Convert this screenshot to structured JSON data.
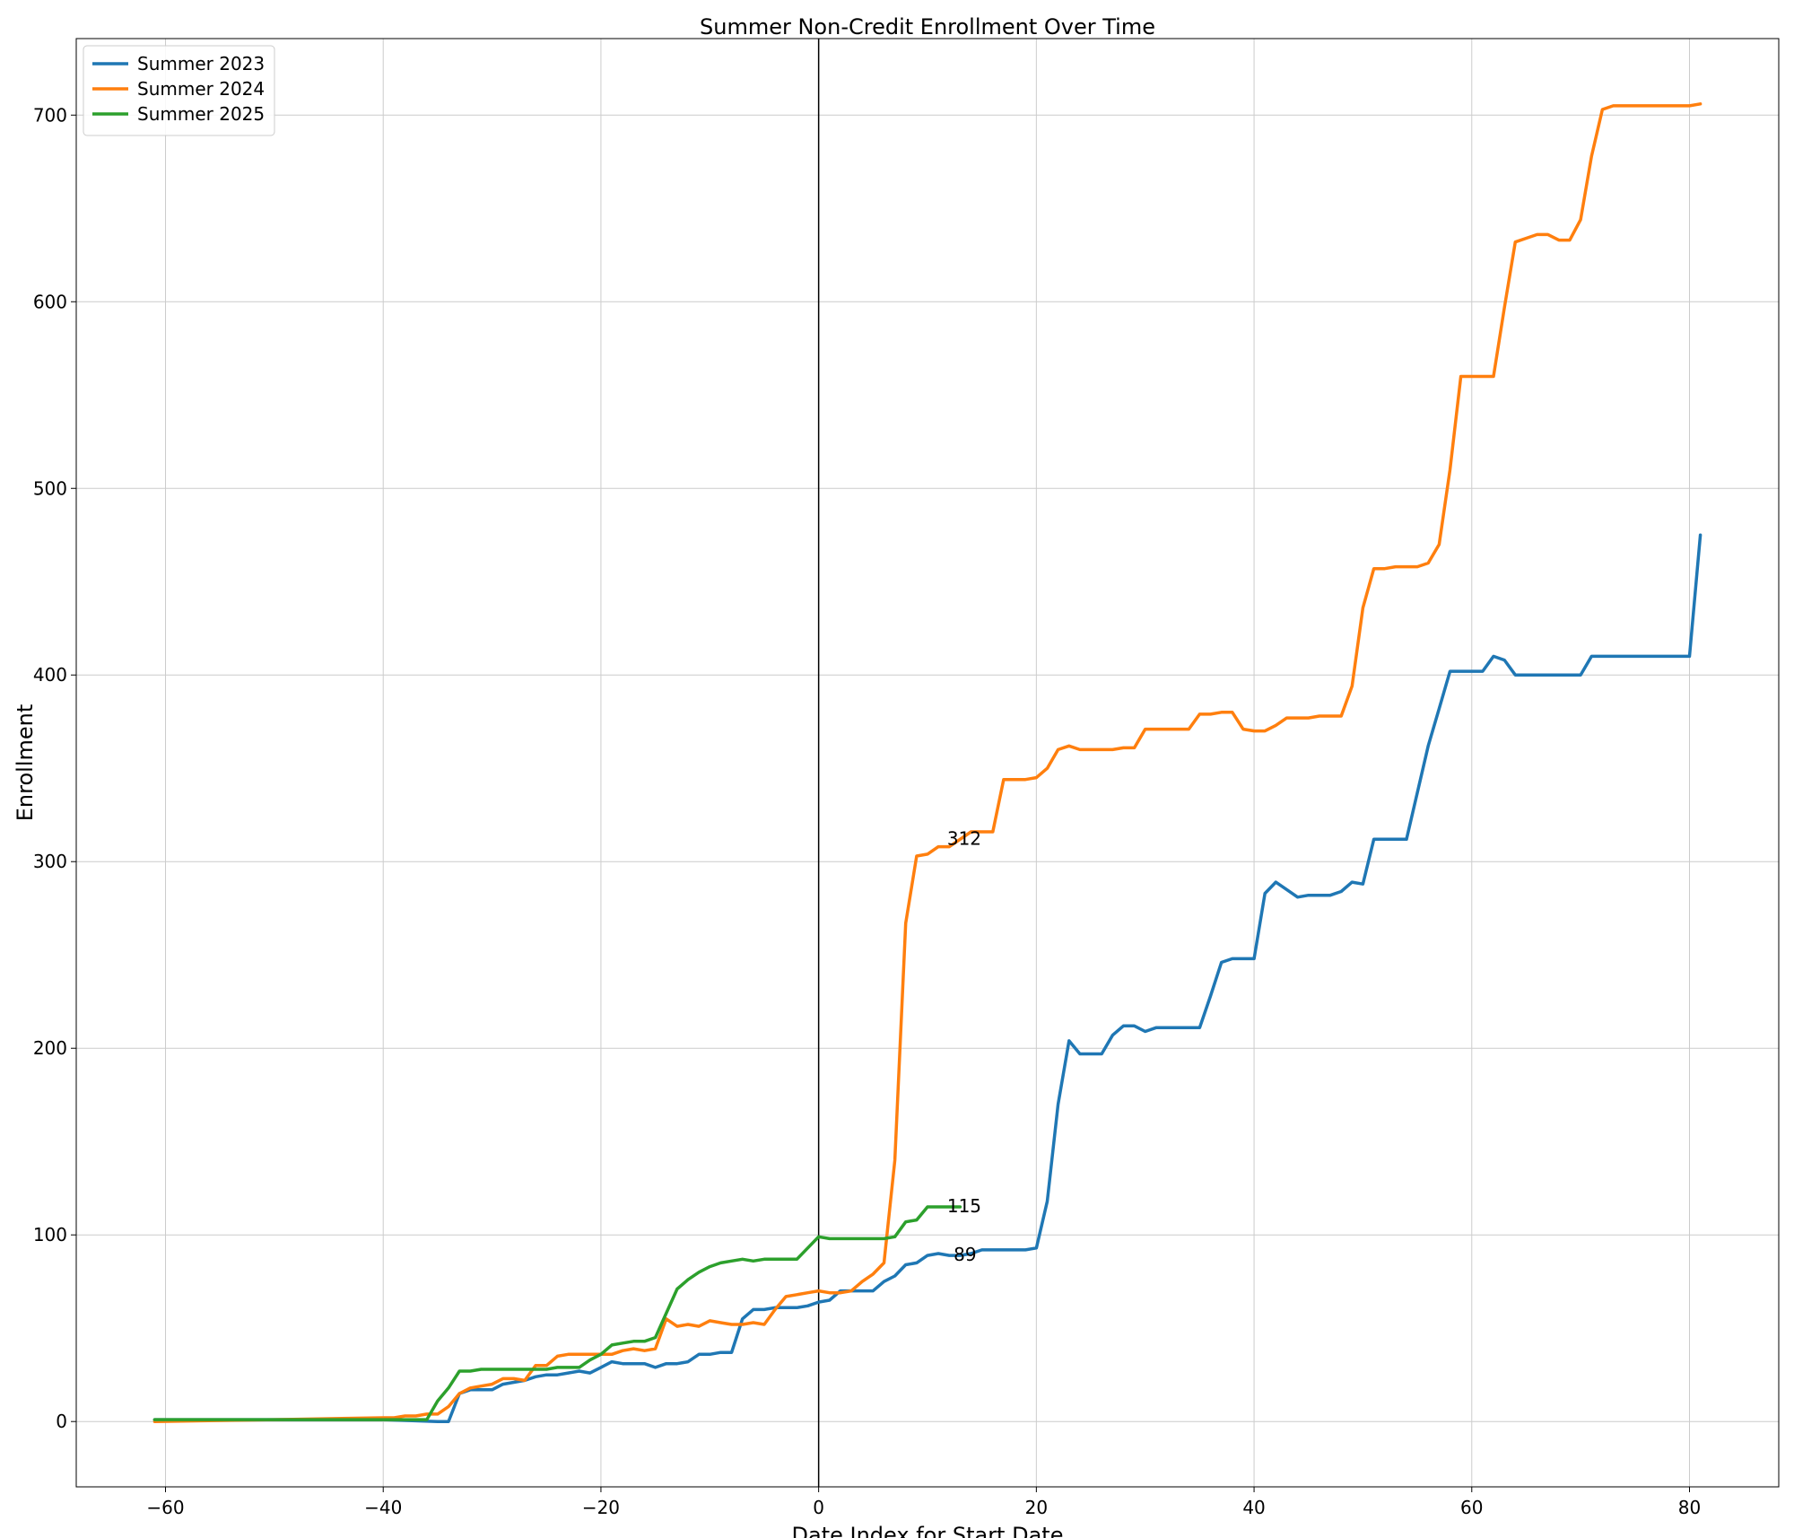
{
  "chart_data": {
    "type": "line",
    "title": "Summer Non-Credit Enrollment Over Time",
    "xlabel": "Date Index for Start Date",
    "ylabel": "Enrollment",
    "xlim": [
      -68.2,
      88.2
    ],
    "ylim": [
      -35,
      741
    ],
    "xticks": [
      -60,
      -40,
      -20,
      0,
      20,
      40,
      60,
      80
    ],
    "xtick_labels": [
      "−60",
      "−40",
      "−20",
      "0",
      "20",
      "40",
      "60",
      "80"
    ],
    "yticks": [
      0,
      100,
      200,
      300,
      400,
      500,
      600,
      700
    ],
    "ytick_labels": [
      "0",
      "100",
      "200",
      "300",
      "400",
      "500",
      "600",
      "700"
    ],
    "grid": true,
    "legend_position": "top-left",
    "vertical_line_x": 0,
    "series": [
      {
        "name": "Summer 2023",
        "color": "#1f77b4",
        "points": [
          [
            -61,
            1
          ],
          [
            -50,
            1
          ],
          [
            -40,
            1
          ],
          [
            -35,
            0
          ],
          [
            -34,
            0
          ],
          [
            -33,
            15
          ],
          [
            -32,
            17
          ],
          [
            -31,
            17
          ],
          [
            -30,
            17
          ],
          [
            -29,
            20
          ],
          [
            -28,
            21
          ],
          [
            -27,
            22
          ],
          [
            -26,
            24
          ],
          [
            -25,
            25
          ],
          [
            -24,
            25
          ],
          [
            -23,
            26
          ],
          [
            -22,
            27
          ],
          [
            -21,
            26
          ],
          [
            -20,
            29
          ],
          [
            -19,
            32
          ],
          [
            -18,
            31
          ],
          [
            -17,
            31
          ],
          [
            -16,
            31
          ],
          [
            -15,
            29
          ],
          [
            -14,
            31
          ],
          [
            -13,
            31
          ],
          [
            -12,
            32
          ],
          [
            -11,
            36
          ],
          [
            -10,
            36
          ],
          [
            -9,
            37
          ],
          [
            -8,
            37
          ],
          [
            -7,
            55
          ],
          [
            -6,
            60
          ],
          [
            -5,
            60
          ],
          [
            -4,
            61
          ],
          [
            -3,
            61
          ],
          [
            -2,
            61
          ],
          [
            -1,
            62
          ],
          [
            0,
            64
          ],
          [
            1,
            65
          ],
          [
            2,
            70
          ],
          [
            3,
            70
          ],
          [
            4,
            70
          ],
          [
            5,
            70
          ],
          [
            6,
            75
          ],
          [
            7,
            78
          ],
          [
            8,
            84
          ],
          [
            9,
            85
          ],
          [
            10,
            89
          ],
          [
            11,
            90
          ],
          [
            12,
            89
          ],
          [
            13,
            89
          ],
          [
            14,
            90
          ],
          [
            15,
            92
          ],
          [
            16,
            92
          ],
          [
            17,
            92
          ],
          [
            18,
            92
          ],
          [
            19,
            92
          ],
          [
            20,
            93
          ],
          [
            21,
            118
          ],
          [
            22,
            170
          ],
          [
            23,
            204
          ],
          [
            24,
            197
          ],
          [
            25,
            197
          ],
          [
            26,
            197
          ],
          [
            27,
            207
          ],
          [
            28,
            212
          ],
          [
            29,
            212
          ],
          [
            30,
            209
          ],
          [
            31,
            211
          ],
          [
            32,
            211
          ],
          [
            33,
            211
          ],
          [
            34,
            211
          ],
          [
            35,
            211
          ],
          [
            36,
            228
          ],
          [
            37,
            246
          ],
          [
            38,
            248
          ],
          [
            39,
            248
          ],
          [
            40,
            248
          ],
          [
            41,
            283
          ],
          [
            42,
            289
          ],
          [
            43,
            285
          ],
          [
            44,
            281
          ],
          [
            45,
            282
          ],
          [
            46,
            282
          ],
          [
            47,
            282
          ],
          [
            48,
            284
          ],
          [
            49,
            289
          ],
          [
            50,
            288
          ],
          [
            51,
            312
          ],
          [
            52,
            312
          ],
          [
            53,
            312
          ],
          [
            54,
            312
          ],
          [
            55,
            337
          ],
          [
            56,
            362
          ],
          [
            57,
            382
          ],
          [
            58,
            402
          ],
          [
            59,
            402
          ],
          [
            60,
            402
          ],
          [
            61,
            402
          ],
          [
            62,
            410
          ],
          [
            63,
            408
          ],
          [
            64,
            400
          ],
          [
            65,
            400
          ],
          [
            66,
            400
          ],
          [
            67,
            400
          ],
          [
            68,
            400
          ],
          [
            69,
            400
          ],
          [
            70,
            400
          ],
          [
            71,
            410
          ],
          [
            72,
            410
          ],
          [
            80,
            410
          ],
          [
            81,
            475
          ]
        ]
      },
      {
        "name": "Summer 2024",
        "color": "#ff7f0e",
        "points": [
          [
            -61,
            0
          ],
          [
            -50,
            1
          ],
          [
            -40,
            2
          ],
          [
            -39,
            2
          ],
          [
            -38,
            3
          ],
          [
            -37,
            3
          ],
          [
            -36,
            4
          ],
          [
            -35,
            4
          ],
          [
            -34,
            8
          ],
          [
            -33,
            15
          ],
          [
            -32,
            18
          ],
          [
            -31,
            19
          ],
          [
            -30,
            20
          ],
          [
            -29,
            23
          ],
          [
            -28,
            23
          ],
          [
            -27,
            22
          ],
          [
            -26,
            30
          ],
          [
            -25,
            30
          ],
          [
            -24,
            35
          ],
          [
            -23,
            36
          ],
          [
            -22,
            36
          ],
          [
            -21,
            36
          ],
          [
            -20,
            36
          ],
          [
            -19,
            36
          ],
          [
            -18,
            38
          ],
          [
            -17,
            39
          ],
          [
            -16,
            38
          ],
          [
            -15,
            39
          ],
          [
            -14,
            55
          ],
          [
            -13,
            51
          ],
          [
            -12,
            52
          ],
          [
            -11,
            51
          ],
          [
            -10,
            54
          ],
          [
            -9,
            53
          ],
          [
            -8,
            52
          ],
          [
            -7,
            52
          ],
          [
            -6,
            53
          ],
          [
            -5,
            52
          ],
          [
            -4,
            60
          ],
          [
            -3,
            67
          ],
          [
            -2,
            68
          ],
          [
            -1,
            69
          ],
          [
            0,
            70
          ],
          [
            1,
            69
          ],
          [
            2,
            69
          ],
          [
            3,
            70
          ],
          [
            4,
            75
          ],
          [
            5,
            79
          ],
          [
            6,
            85
          ],
          [
            7,
            140
          ],
          [
            8,
            267
          ],
          [
            9,
            303
          ],
          [
            10,
            304
          ],
          [
            11,
            308
          ],
          [
            12,
            308
          ],
          [
            13,
            312
          ],
          [
            14,
            316
          ],
          [
            15,
            316
          ],
          [
            16,
            316
          ],
          [
            17,
            344
          ],
          [
            18,
            344
          ],
          [
            19,
            344
          ],
          [
            20,
            345
          ],
          [
            21,
            350
          ],
          [
            22,
            360
          ],
          [
            23,
            362
          ],
          [
            24,
            360
          ],
          [
            25,
            360
          ],
          [
            26,
            360
          ],
          [
            27,
            360
          ],
          [
            28,
            361
          ],
          [
            29,
            361
          ],
          [
            30,
            371
          ],
          [
            31,
            371
          ],
          [
            32,
            371
          ],
          [
            33,
            371
          ],
          [
            34,
            371
          ],
          [
            35,
            379
          ],
          [
            36,
            379
          ],
          [
            37,
            380
          ],
          [
            38,
            380
          ],
          [
            39,
            371
          ],
          [
            40,
            370
          ],
          [
            41,
            370
          ],
          [
            42,
            373
          ],
          [
            43,
            377
          ],
          [
            44,
            377
          ],
          [
            45,
            377
          ],
          [
            46,
            378
          ],
          [
            47,
            378
          ],
          [
            48,
            378
          ],
          [
            49,
            394
          ],
          [
            50,
            436
          ],
          [
            51,
            457
          ],
          [
            52,
            457
          ],
          [
            53,
            458
          ],
          [
            54,
            458
          ],
          [
            55,
            458
          ],
          [
            56,
            460
          ],
          [
            57,
            470
          ],
          [
            58,
            510
          ],
          [
            59,
            560
          ],
          [
            60,
            560
          ],
          [
            61,
            560
          ],
          [
            62,
            560
          ],
          [
            63,
            597
          ],
          [
            64,
            632
          ],
          [
            65,
            634
          ],
          [
            66,
            636
          ],
          [
            67,
            636
          ],
          [
            68,
            633
          ],
          [
            69,
            633
          ],
          [
            70,
            644
          ],
          [
            71,
            678
          ],
          [
            72,
            703
          ],
          [
            73,
            705
          ],
          [
            74,
            705
          ],
          [
            80,
            705
          ],
          [
            81,
            706
          ]
        ]
      },
      {
        "name": "Summer 2025",
        "color": "#2ca02c",
        "points": [
          [
            -61,
            1
          ],
          [
            -50,
            1
          ],
          [
            -40,
            1
          ],
          [
            -37,
            1
          ],
          [
            -36,
            1
          ],
          [
            -35,
            11
          ],
          [
            -34,
            18
          ],
          [
            -33,
            27
          ],
          [
            -32,
            27
          ],
          [
            -31,
            28
          ],
          [
            -30,
            28
          ],
          [
            -29,
            28
          ],
          [
            -28,
            28
          ],
          [
            -27,
            28
          ],
          [
            -26,
            28
          ],
          [
            -25,
            28
          ],
          [
            -24,
            29
          ],
          [
            -23,
            29
          ],
          [
            -22,
            29
          ],
          [
            -21,
            33
          ],
          [
            -20,
            36
          ],
          [
            -19,
            41
          ],
          [
            -18,
            42
          ],
          [
            -17,
            43
          ],
          [
            -16,
            43
          ],
          [
            -15,
            45
          ],
          [
            -14,
            58
          ],
          [
            -13,
            71
          ],
          [
            -12,
            76
          ],
          [
            -11,
            80
          ],
          [
            -10,
            83
          ],
          [
            -9,
            85
          ],
          [
            -8,
            86
          ],
          [
            -7,
            87
          ],
          [
            -6,
            86
          ],
          [
            -5,
            87
          ],
          [
            -4,
            87
          ],
          [
            -3,
            87
          ],
          [
            -2,
            87
          ],
          [
            -1,
            93
          ],
          [
            0,
            99
          ],
          [
            1,
            98
          ],
          [
            2,
            98
          ],
          [
            3,
            98
          ],
          [
            4,
            98
          ],
          [
            5,
            98
          ],
          [
            6,
            98
          ],
          [
            7,
            99
          ],
          [
            8,
            107
          ],
          [
            9,
            108
          ],
          [
            10,
            115
          ],
          [
            11,
            115
          ],
          [
            12,
            115
          ],
          [
            13,
            115
          ]
        ]
      }
    ],
    "annotations": [
      {
        "text": "312",
        "x": 11.8,
        "y": 312
      },
      {
        "text": "115",
        "x": 11.8,
        "y": 115
      },
      {
        "text": "89",
        "x": 12.4,
        "y": 89
      }
    ]
  }
}
